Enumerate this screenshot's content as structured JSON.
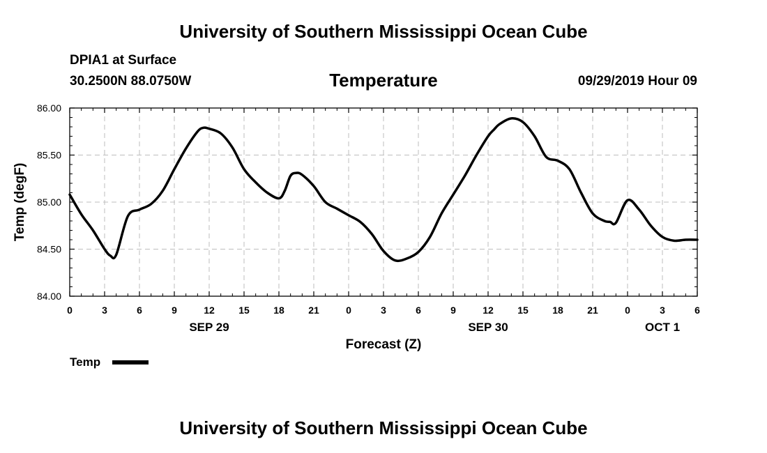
{
  "header": {
    "title": "University of Southern Mississippi Ocean Cube",
    "station": "DPIA1 at Surface",
    "coords": "30.2500N 88.0750W",
    "plot_title": "Temperature",
    "datetime": "09/29/2019 Hour 09"
  },
  "footer": {
    "title": "University of Southern Mississippi Ocean Cube"
  },
  "legend": {
    "label": "Temp"
  },
  "chart_data": {
    "type": "line",
    "title": "Temperature",
    "xlabel": "Forecast (Z)",
    "ylabel": "Temp (degF)",
    "x_unit": "forecast hours from 2019-09-29 00Z",
    "xlim": [
      0,
      54
    ],
    "ylim": [
      84.0,
      86.0
    ],
    "grid": true,
    "legend_position": "bottom-left",
    "x_ticks": [
      {
        "x": 0,
        "label": "0"
      },
      {
        "x": 3,
        "label": "3"
      },
      {
        "x": 6,
        "label": "6"
      },
      {
        "x": 9,
        "label": "9"
      },
      {
        "x": 12,
        "label": "12"
      },
      {
        "x": 15,
        "label": "15"
      },
      {
        "x": 18,
        "label": "18"
      },
      {
        "x": 21,
        "label": "21"
      },
      {
        "x": 24,
        "label": "0"
      },
      {
        "x": 27,
        "label": "3"
      },
      {
        "x": 30,
        "label": "6"
      },
      {
        "x": 33,
        "label": "9"
      },
      {
        "x": 36,
        "label": "12"
      },
      {
        "x": 39,
        "label": "15"
      },
      {
        "x": 42,
        "label": "18"
      },
      {
        "x": 45,
        "label": "21"
      },
      {
        "x": 48,
        "label": "0"
      },
      {
        "x": 51,
        "label": "3"
      },
      {
        "x": 54,
        "label": "6"
      }
    ],
    "date_labels": [
      {
        "x": 12,
        "label": "SEP 29"
      },
      {
        "x": 36,
        "label": "SEP 30"
      },
      {
        "x": 51,
        "label": "OCT 1"
      }
    ],
    "y_ticks": [
      "84.00",
      "84.50",
      "85.00",
      "85.50",
      "86.00"
    ],
    "series": [
      {
        "name": "Temp",
        "color": "#000000",
        "x": [
          0,
          1,
          2,
          3,
          3.5,
          4,
          5,
          6,
          7,
          8,
          9,
          10,
          11,
          11.5,
          12,
          13,
          14,
          15,
          16,
          17,
          18,
          18.5,
          19,
          19.5,
          20,
          21,
          22,
          23,
          24,
          25,
          26,
          27,
          28,
          29,
          30,
          31,
          32,
          33,
          34,
          35,
          36,
          36.5,
          37,
          38,
          39,
          40,
          41,
          42,
          43,
          44,
          45,
          46,
          46.5,
          47,
          48,
          49,
          50,
          51,
          52,
          53,
          54
        ],
        "y": [
          85.08,
          84.87,
          84.7,
          84.5,
          84.43,
          84.44,
          84.85,
          84.92,
          84.98,
          85.12,
          85.35,
          85.57,
          85.75,
          85.79,
          85.78,
          85.73,
          85.58,
          85.35,
          85.21,
          85.1,
          85.04,
          85.12,
          85.28,
          85.31,
          85.29,
          85.17,
          85.0,
          84.93,
          84.86,
          84.79,
          84.66,
          84.48,
          84.38,
          84.4,
          84.47,
          84.63,
          84.88,
          85.08,
          85.28,
          85.5,
          85.7,
          85.77,
          85.83,
          85.89,
          85.85,
          85.7,
          85.48,
          85.44,
          85.35,
          85.1,
          84.88,
          84.8,
          84.79,
          84.78,
          85.02,
          84.92,
          84.75,
          84.63,
          84.59,
          84.6,
          84.6
        ]
      }
    ]
  }
}
